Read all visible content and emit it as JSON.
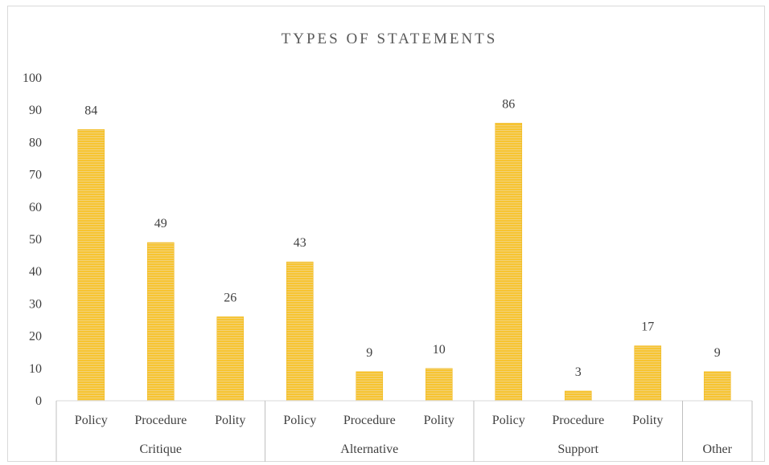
{
  "chart_data": {
    "type": "bar",
    "title": "TYPES OF STATEMENTS",
    "groups": [
      {
        "label": "Critique",
        "categories": [
          "Policy",
          "Procedure",
          "Polity"
        ],
        "values": [
          84,
          49,
          26
        ]
      },
      {
        "label": "Alternative",
        "categories": [
          "Policy",
          "Procedure",
          "Polity"
        ],
        "values": [
          43,
          9,
          10
        ]
      },
      {
        "label": "Support",
        "categories": [
          "Policy",
          "Procedure",
          "Polity"
        ],
        "values": [
          86,
          3,
          17
        ]
      },
      {
        "label": "Other",
        "categories": [
          ""
        ],
        "values": [
          9
        ]
      }
    ],
    "ylim": [
      0,
      100
    ],
    "yticks": [
      0,
      10,
      20,
      30,
      40,
      50,
      60,
      70,
      80,
      90,
      100
    ],
    "bar_color": "#F7C431",
    "gridlines": false,
    "data_labels": true
  }
}
